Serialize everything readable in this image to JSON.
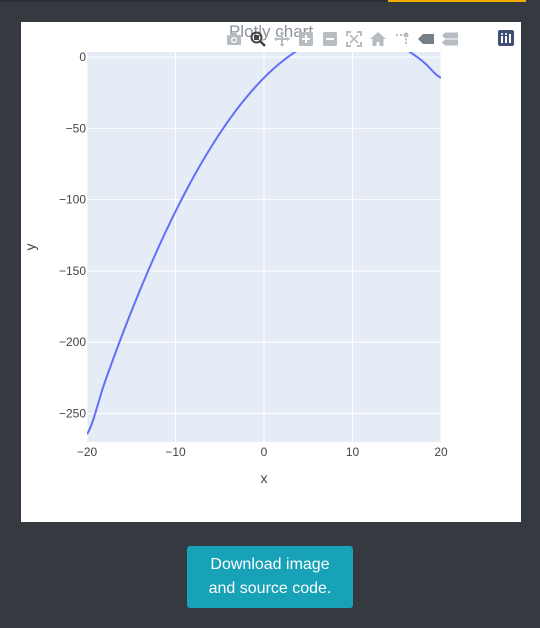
{
  "chart_data": {
    "type": "line",
    "title": "Plotly chart",
    "xlabel": "x",
    "ylabel": "y",
    "xlim": [
      -20,
      20
    ],
    "ylim": [
      -270,
      3.6
    ],
    "xticks": [
      -20,
      -10,
      0,
      10,
      20
    ],
    "xtick_labels": [
      "−20",
      "−10",
      "0",
      "10",
      "20"
    ],
    "yticks": [
      0,
      -50,
      -100,
      -150,
      -200,
      -250
    ],
    "ytick_labels": [
      "0",
      "−50",
      "−100",
      "−150",
      "−200",
      "−250"
    ],
    "grid": true,
    "line_color": "#636efa",
    "plot_background": "#e5ecf6",
    "series": [
      {
        "x": [
          -20,
          -18,
          -16,
          -14,
          -12,
          -10,
          -8,
          -6,
          -4,
          -2,
          0,
          2,
          4,
          6,
          8,
          10,
          12,
          14,
          16,
          18,
          20
        ],
        "y": [
          -264.5,
          -228.3,
          -194.5,
          -163.3,
          -134.5,
          -108.3,
          -84.5,
          -63.3,
          -44.5,
          -28.3,
          -14.5,
          -3.3,
          5.5,
          11.7,
          15.5,
          16.7,
          15.5,
          11.7,
          5.5,
          -3.3,
          -14.5
        ]
      }
    ]
  },
  "modebar": {
    "icons": [
      "camera-icon",
      "zoom-icon",
      "pan-icon",
      "zoom-in-icon",
      "zoom-out-icon",
      "autoscale-icon",
      "home-icon",
      "spike-lines-icon",
      "hover-closest-icon",
      "hover-compare-icon"
    ],
    "logo": "plotly-logo-icon"
  },
  "download_button": {
    "label": "Download image and source code."
  },
  "colors": {
    "page_background": "#343a40",
    "button": "#17a2b8",
    "accent": "#f0ad00"
  }
}
